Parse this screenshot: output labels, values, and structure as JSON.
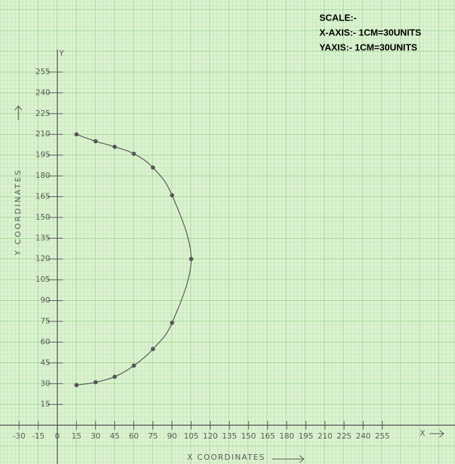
{
  "chart_data": {
    "type": "scatter",
    "scale": {
      "title": "SCALE:-",
      "lines": [
        "X-AXIS:- 1CM=30UNITS",
        "YAXIS:- 1CM=30UNITS"
      ]
    },
    "x_label": "X COORDINATES",
    "y_label": "Y COORDINATES",
    "x_axis_letter": "X",
    "y_axis_letter": "Y",
    "xlim": [
      -45,
      312
    ],
    "ylim": [
      -28,
      307
    ],
    "xticks": [
      -30,
      -15,
      0,
      15,
      30,
      45,
      60,
      75,
      90,
      105,
      120,
      135,
      150,
      165,
      180,
      195,
      210,
      225,
      240,
      255
    ],
    "yticks": [
      15,
      30,
      45,
      60,
      75,
      90,
      105,
      120,
      135,
      150,
      165,
      180,
      195,
      210,
      225,
      240,
      255
    ],
    "grid": true,
    "series": [
      {
        "color": "#555555",
        "curve": true,
        "x": [
          15,
          30,
          45,
          60,
          75,
          90,
          105,
          90,
          75,
          60,
          45,
          30,
          15
        ],
        "values": [
          210,
          205,
          201,
          196,
          186,
          166,
          120,
          74,
          55,
          43,
          35,
          31,
          29
        ]
      }
    ]
  }
}
